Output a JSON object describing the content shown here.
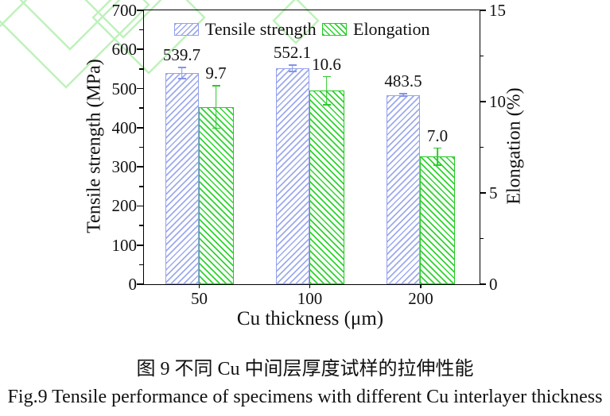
{
  "figure": {
    "caption_zh": "图 9  不同 Cu 中间层厚度试样的拉伸性能",
    "caption_en": "Fig.9 Tensile performance of specimens with different Cu interlayer thickness"
  },
  "colors": {
    "tensile_bar": "#94a2ec",
    "tensile_error": "#8495e8",
    "elongation_bar": "#26c926",
    "elongation_error": "#2cc92c",
    "decoration_green": "#bdf2ba",
    "axis": "#000000"
  },
  "chart_data": {
    "type": "bar",
    "title": "",
    "xlabel": "Cu thickness (μm)",
    "ylabel_left": "Tensile strength (MPa)",
    "ylabel_right": "Elongation (%)",
    "categories": [
      "50",
      "100",
      "200"
    ],
    "series": [
      {
        "name": "Tensile strength",
        "axis": "left",
        "values": [
          539.7,
          552.1,
          483.5
        ],
        "errors": [
          16,
          10,
          5
        ],
        "labels": [
          "539.7",
          "552.1",
          "483.5"
        ],
        "hatch": "/"
      },
      {
        "name": "Elongation",
        "axis": "right",
        "values": [
          9.7,
          10.6,
          7.0
        ],
        "errors": [
          1.2,
          0.8,
          0.5
        ],
        "labels": [
          "9.7",
          "10.6",
          "7.0"
        ],
        "hatch": "\\"
      }
    ],
    "axes": {
      "left": {
        "min": 0,
        "max": 700,
        "major": 100,
        "minor": 50,
        "tick_labels": [
          "0",
          "100",
          "200",
          "300",
          "400",
          "500",
          "600",
          "700"
        ]
      },
      "right": {
        "min": 0,
        "max": 15,
        "major": 5,
        "minor": 2.5,
        "tick_labels": [
          "0",
          "5",
          "10",
          "15"
        ]
      }
    },
    "legend_position": "top-inside",
    "grid": false
  }
}
